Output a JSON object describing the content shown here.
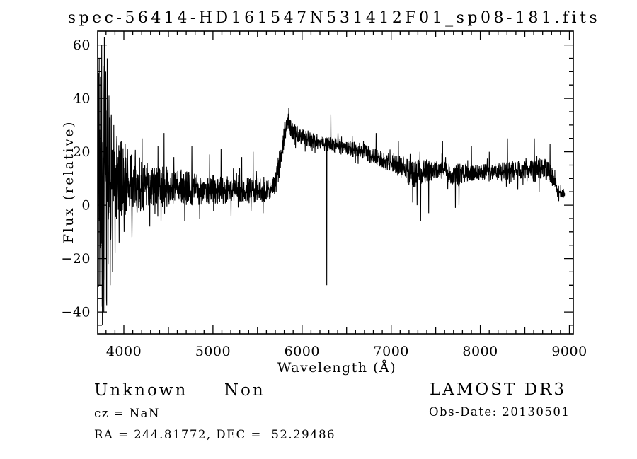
{
  "colors": {
    "foreground": "#000000",
    "background": "#ffffff"
  },
  "chart_data": {
    "type": "line",
    "title": "spec-56414-HD161547N531412F01_sp08-181.fits",
    "xlabel": "Wavelength (Å)",
    "ylabel": "Flux (relative)",
    "xlim": [
      3706,
      9044
    ],
    "ylim": [
      -48.2,
      65.2
    ],
    "grid": false,
    "legend": null,
    "x_major_ticks": [
      4000,
      5000,
      6000,
      7000,
      8000,
      9000
    ],
    "x_tick_labels": [
      "4000",
      "5000",
      "6000",
      "7000",
      "8000",
      "9000"
    ],
    "x_minor_step": 100,
    "y_major_ticks": [
      60,
      40,
      20,
      0,
      -20,
      -40
    ],
    "y_tick_labels": [
      "60",
      "40",
      "20",
      "0",
      "−20",
      "−40"
    ],
    "y_minor_step": 5,
    "series": {
      "name": "spectrum",
      "color": "#000000",
      "x_start": 3715,
      "x_end": 8950,
      "x_step": 2,
      "seed": 7,
      "baseline_keypoints": [
        [
          3715,
          10
        ],
        [
          3800,
          11
        ],
        [
          3900,
          9
        ],
        [
          4000,
          8
        ],
        [
          4200,
          7
        ],
        [
          4500,
          7
        ],
        [
          4800,
          6
        ],
        [
          5100,
          6
        ],
        [
          5400,
          5.5
        ],
        [
          5650,
          6
        ],
        [
          5700,
          8
        ],
        [
          5760,
          18
        ],
        [
          5810,
          28
        ],
        [
          5845,
          32
        ],
        [
          5875,
          28
        ],
        [
          5950,
          26.5
        ],
        [
          6100,
          24.5
        ],
        [
          6300,
          23
        ],
        [
          6500,
          21.5
        ],
        [
          6700,
          20
        ],
        [
          6900,
          17
        ],
        [
          7100,
          14.5
        ],
        [
          7250,
          11.5
        ],
        [
          7400,
          13
        ],
        [
          7550,
          13.5
        ],
        [
          7700,
          11.5
        ],
        [
          7850,
          12
        ],
        [
          8000,
          12.5
        ],
        [
          8200,
          12.5
        ],
        [
          8400,
          13
        ],
        [
          8600,
          13.5
        ],
        [
          8750,
          13.5
        ],
        [
          8830,
          10
        ],
        [
          8870,
          5
        ],
        [
          8950,
          4
        ]
      ],
      "noise_keypoints": [
        [
          3715,
          42
        ],
        [
          3760,
          45
        ],
        [
          3800,
          30
        ],
        [
          3850,
          24
        ],
        [
          3900,
          18
        ],
        [
          4000,
          13
        ],
        [
          4150,
          10
        ],
        [
          4350,
          8
        ],
        [
          4600,
          7
        ],
        [
          5000,
          5.5
        ],
        [
          5300,
          5
        ],
        [
          5600,
          4.5
        ],
        [
          5780,
          5
        ],
        [
          5850,
          3.5
        ],
        [
          6000,
          3.2
        ],
        [
          6300,
          3
        ],
        [
          6700,
          3
        ],
        [
          7000,
          3.2
        ],
        [
          7200,
          5
        ],
        [
          7350,
          5
        ],
        [
          7500,
          3.2
        ],
        [
          7700,
          4.5
        ],
        [
          7900,
          3.2
        ],
        [
          8100,
          3
        ],
        [
          8300,
          3.5
        ],
        [
          8550,
          3.5
        ],
        [
          8750,
          4
        ],
        [
          8840,
          2.5
        ],
        [
          8950,
          2
        ]
      ],
      "spikes": [
        [
          3722,
          55
        ],
        [
          3728,
          -30
        ],
        [
          3736,
          48
        ],
        [
          3743,
          -38
        ],
        [
          3751,
          60
        ],
        [
          3758,
          -45
        ],
        [
          3766,
          52
        ],
        [
          3774,
          -40
        ],
        [
          3781,
          63
        ],
        [
          3789,
          -28
        ],
        [
          3797,
          50
        ],
        [
          3805,
          -35
        ],
        [
          3813,
          55
        ],
        [
          3823,
          -22
        ],
        [
          3833,
          41
        ],
        [
          3846,
          -30
        ],
        [
          3859,
          34
        ],
        [
          3873,
          -25
        ],
        [
          3887,
          30
        ],
        [
          3901,
          -18
        ],
        [
          3921,
          26
        ],
        [
          3946,
          -14
        ],
        [
          3971,
          24
        ],
        [
          4002,
          -10
        ],
        [
          4041,
          21
        ],
        [
          4091,
          -12
        ],
        [
          4205,
          25
        ],
        [
          4291,
          -8
        ],
        [
          4382,
          22
        ],
        [
          4450,
          27
        ],
        [
          4561,
          18
        ],
        [
          4682,
          -6
        ],
        [
          4762,
          22
        ],
        [
          4851,
          -5
        ],
        [
          4962,
          19
        ],
        [
          5091,
          21
        ],
        [
          5203,
          -4
        ],
        [
          5322,
          18
        ],
        [
          5451,
          20
        ],
        [
          5563,
          -3
        ],
        [
          5851,
          36.5
        ],
        [
          6277,
          -30
        ],
        [
          6322,
          34
        ],
        [
          6562,
          26
        ],
        [
          6831,
          27
        ],
        [
          7081,
          24
        ],
        [
          7241,
          1
        ],
        [
          7291,
          0
        ],
        [
          7331,
          -6
        ],
        [
          7421,
          -3
        ],
        [
          7576,
          24
        ],
        [
          7611,
          18
        ],
        [
          7721,
          -1
        ],
        [
          7761,
          0
        ],
        [
          7901,
          22
        ],
        [
          8101,
          20
        ],
        [
          8305,
          25
        ],
        [
          8421,
          6
        ],
        [
          8607,
          25
        ],
        [
          8661,
          5
        ],
        [
          8782,
          23
        ],
        [
          8881,
          1.5
        ]
      ]
    }
  },
  "info": {
    "class_label": "Unknown     Non",
    "cz": "cz = NaN",
    "ra_dec": "RA = 244.81772, DEC =  52.29486",
    "survey": "LAMOST DR3",
    "obs_date": "Obs-Date: 20130501"
  }
}
